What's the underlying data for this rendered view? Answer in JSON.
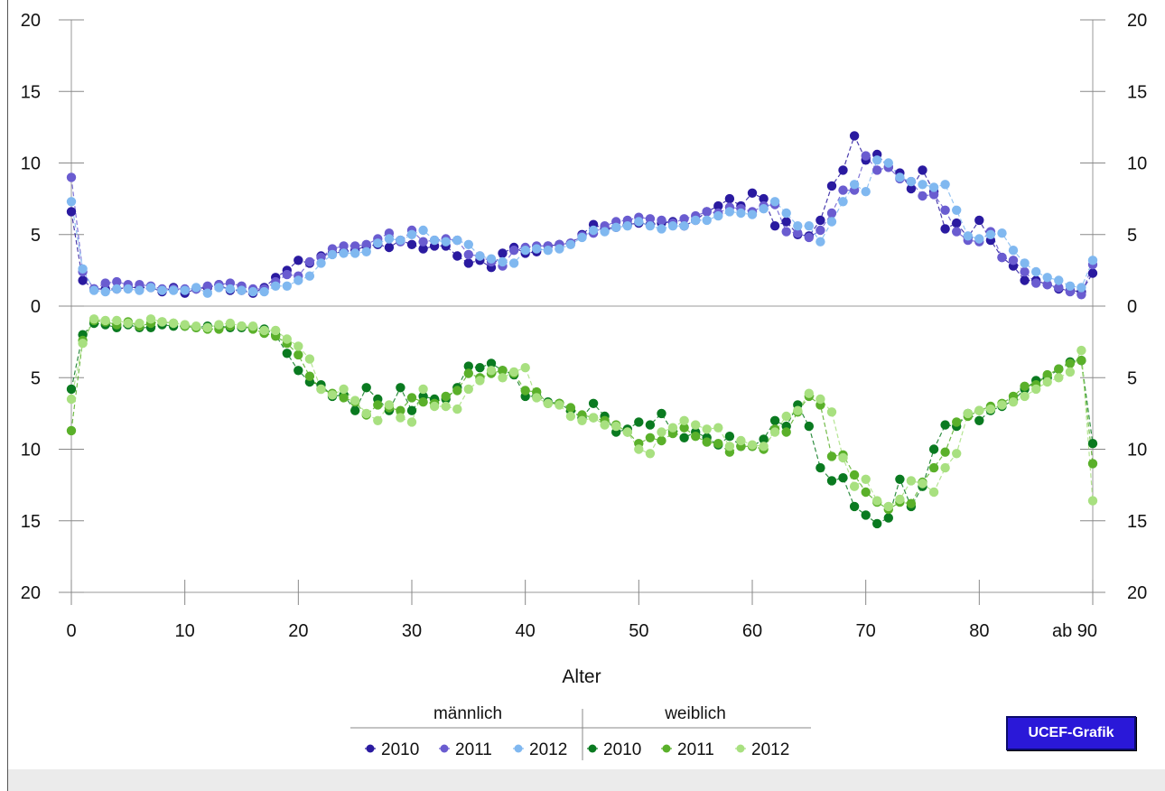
{
  "chart_data": {
    "type": "line",
    "xlabel": "Alter",
    "x_tick_labels": [
      "0",
      "10",
      "20",
      "30",
      "40",
      "50",
      "60",
      "70",
      "80",
      "ab 90"
    ],
    "x_ticks": [
      0,
      10,
      20,
      30,
      40,
      50,
      60,
      70,
      80,
      90
    ],
    "xlim": [
      0,
      90
    ],
    "y_tick_labels": [
      "20",
      "15",
      "10",
      "5",
      "0",
      "5",
      "10",
      "15",
      "20"
    ],
    "y_ticks": [
      20,
      15,
      10,
      5,
      0,
      -5,
      -10,
      -15,
      -20
    ],
    "ylim": [
      -20,
      20
    ],
    "grid": false,
    "legend_position": "bottom",
    "legend_groups": [
      "männlich",
      "weiblich"
    ],
    "x": [
      0,
      1,
      2,
      3,
      4,
      5,
      6,
      7,
      8,
      9,
      10,
      11,
      12,
      13,
      14,
      15,
      16,
      17,
      18,
      19,
      20,
      21,
      22,
      23,
      24,
      25,
      26,
      27,
      28,
      29,
      30,
      31,
      32,
      33,
      34,
      35,
      36,
      37,
      38,
      39,
      40,
      41,
      42,
      43,
      44,
      45,
      46,
      47,
      48,
      49,
      50,
      51,
      52,
      53,
      54,
      55,
      56,
      57,
      58,
      59,
      60,
      61,
      62,
      63,
      64,
      65,
      66,
      67,
      68,
      69,
      70,
      71,
      72,
      73,
      74,
      75,
      76,
      77,
      78,
      79,
      80,
      81,
      82,
      83,
      84,
      85,
      86,
      87,
      88,
      89,
      90
    ],
    "series": [
      {
        "name": "2010",
        "group": "männlich",
        "color": "#2a1aa0",
        "values": [
          6.6,
          1.8,
          1.2,
          1.2,
          1.2,
          1.3,
          1.3,
          1.3,
          1.0,
          1.3,
          0.9,
          1.2,
          1.3,
          1.5,
          1.1,
          1.1,
          0.9,
          1.3,
          2.0,
          2.5,
          3.2,
          3.0,
          3.5,
          3.7,
          3.8,
          3.9,
          4.2,
          4.3,
          4.1,
          4.6,
          4.3,
          4.0,
          4.2,
          4.2,
          3.5,
          3.0,
          3.2,
          2.7,
          3.7,
          4.1,
          3.7,
          3.8,
          4.2,
          4.3,
          4.4,
          5.0,
          5.7,
          5.4,
          5.5,
          5.7,
          5.8,
          5.7,
          5.8,
          5.9,
          5.6,
          6.0,
          6.6,
          7.0,
          7.5,
          7.0,
          7.9,
          7.5,
          5.6,
          5.9,
          5.0,
          4.9,
          6.0,
          8.4,
          9.5,
          11.9,
          10.2,
          10.6,
          9.7,
          9.3,
          8.2,
          9.5,
          8.0,
          5.4,
          5.8,
          4.8,
          6.0,
          4.6,
          3.4,
          2.8,
          1.8,
          1.8,
          1.5,
          1.2,
          1.1,
          1.0,
          2.3
        ]
      },
      {
        "name": "2011",
        "group": "männlich",
        "color": "#6a5cd0",
        "values": [
          9.0,
          2.4,
          1.2,
          1.6,
          1.7,
          1.5,
          1.5,
          1.4,
          1.2,
          1.2,
          1.2,
          1.2,
          1.4,
          1.5,
          1.6,
          1.4,
          1.2,
          1.2,
          1.7,
          2.2,
          2.1,
          3.1,
          3.4,
          4.0,
          4.2,
          4.2,
          4.3,
          4.7,
          5.1,
          4.5,
          5.3,
          4.5,
          4.6,
          4.7,
          4.6,
          3.6,
          3.5,
          3.1,
          2.8,
          3.9,
          4.1,
          4.2,
          4.2,
          4.3,
          4.4,
          4.9,
          5.1,
          5.6,
          5.9,
          6.0,
          6.2,
          6.1,
          6.0,
          5.8,
          6.1,
          6.3,
          6.6,
          6.5,
          6.9,
          6.8,
          6.6,
          7.0,
          7.1,
          5.2,
          5.1,
          4.8,
          5.3,
          6.5,
          8.1,
          8.1,
          10.5,
          9.5,
          9.7,
          8.9,
          8.7,
          7.7,
          7.8,
          6.7,
          5.2,
          4.6,
          4.5,
          5.2,
          3.4,
          3.2,
          2.4,
          1.6,
          1.5,
          1.3,
          1.0,
          0.8,
          2.9
        ]
      },
      {
        "name": "2012",
        "group": "männlich",
        "color": "#80b8f0",
        "values": [
          7.3,
          2.6,
          1.1,
          1.0,
          1.2,
          1.2,
          1.1,
          1.3,
          1.1,
          1.1,
          1.1,
          1.3,
          0.9,
          1.3,
          1.2,
          1.1,
          1.0,
          1.0,
          1.4,
          1.4,
          1.8,
          2.1,
          3.0,
          3.6,
          3.7,
          3.7,
          3.8,
          4.4,
          4.7,
          4.6,
          5.0,
          5.3,
          4.6,
          4.5,
          4.6,
          4.3,
          3.5,
          3.3,
          3.1,
          3.0,
          3.9,
          4.0,
          3.9,
          4.0,
          4.3,
          4.8,
          5.3,
          5.2,
          5.5,
          5.6,
          5.9,
          5.6,
          5.4,
          5.6,
          5.6,
          6.0,
          6.0,
          6.3,
          6.6,
          6.5,
          6.4,
          6.8,
          7.3,
          6.5,
          5.6,
          5.6,
          4.5,
          5.9,
          7.3,
          8.5,
          8.0,
          10.2,
          10.0,
          9.0,
          8.7,
          8.5,
          8.3,
          8.5,
          6.7,
          4.9,
          4.7,
          5.0,
          5.1,
          3.9,
          3.0,
          2.4,
          2.0,
          1.8,
          1.4,
          1.3,
          3.2
        ]
      },
      {
        "name": "2010",
        "group": "weiblich",
        "color": "#0a7a20",
        "values": [
          -5.8,
          -2.0,
          -1.2,
          -1.3,
          -1.5,
          -1.3,
          -1.5,
          -1.5,
          -1.3,
          -1.4,
          -1.4,
          -1.5,
          -1.4,
          -1.4,
          -1.5,
          -1.5,
          -1.5,
          -1.6,
          -2.0,
          -3.3,
          -4.5,
          -5.3,
          -5.5,
          -6.3,
          -6.2,
          -7.3,
          -5.7,
          -6.5,
          -7.3,
          -5.7,
          -7.3,
          -6.3,
          -6.5,
          -6.5,
          -5.7,
          -4.2,
          -4.3,
          -4.0,
          -4.5,
          -4.8,
          -6.3,
          -6.3,
          -6.7,
          -6.8,
          -7.3,
          -7.8,
          -6.8,
          -7.7,
          -8.8,
          -8.6,
          -8.1,
          -8.3,
          -7.5,
          -8.8,
          -9.2,
          -8.8,
          -9.2,
          -9.7,
          -9.1,
          -9.8,
          -9.8,
          -9.3,
          -8.0,
          -8.4,
          -6.9,
          -8.4,
          -11.3,
          -12.2,
          -12.0,
          -14.0,
          -14.6,
          -15.2,
          -14.8,
          -12.1,
          -14.0,
          -12.6,
          -10.0,
          -8.3,
          -8.4,
          -7.5,
          -8.0,
          -7.3,
          -7.0,
          -6.6,
          -5.8,
          -5.2,
          -5.0,
          -4.4,
          -3.9,
          -3.8,
          -9.6
        ]
      },
      {
        "name": "2011",
        "group": "weiblich",
        "color": "#5ab02a",
        "values": [
          -8.7,
          -2.4,
          -1.0,
          -1.1,
          -1.3,
          -1.1,
          -1.4,
          -1.2,
          -1.1,
          -1.2,
          -1.4,
          -1.5,
          -1.6,
          -1.6,
          -1.4,
          -1.4,
          -1.6,
          -1.9,
          -2.1,
          -2.6,
          -3.4,
          -4.9,
          -5.8,
          -6.1,
          -6.4,
          -6.7,
          -7.6,
          -6.9,
          -7.1,
          -7.3,
          -6.4,
          -6.7,
          -6.8,
          -6.3,
          -5.9,
          -4.7,
          -5.0,
          -4.7,
          -4.5,
          -4.7,
          -5.9,
          -6.0,
          -6.8,
          -6.8,
          -7.1,
          -7.6,
          -7.8,
          -8.0,
          -8.3,
          -8.8,
          -9.6,
          -9.2,
          -9.4,
          -8.9,
          -8.5,
          -9.1,
          -9.5,
          -9.6,
          -10.2,
          -9.8,
          -9.8,
          -10.0,
          -8.6,
          -8.8,
          -7.4,
          -6.3,
          -6.9,
          -10.5,
          -10.4,
          -11.8,
          -13.0,
          -13.7,
          -14.2,
          -13.7,
          -13.8,
          -12.3,
          -11.3,
          -10.2,
          -8.1,
          -7.7,
          -7.3,
          -7.0,
          -6.8,
          -6.3,
          -5.6,
          -5.5,
          -4.8,
          -4.4,
          -4.0,
          -3.8,
          -11.0
        ]
      },
      {
        "name": "2012",
        "group": "weiblich",
        "color": "#a8e080",
        "values": [
          -6.5,
          -2.6,
          -0.9,
          -1.0,
          -1.0,
          -1.2,
          -1.2,
          -0.9,
          -1.1,
          -1.2,
          -1.3,
          -1.4,
          -1.5,
          -1.3,
          -1.2,
          -1.4,
          -1.4,
          -1.7,
          -1.7,
          -2.3,
          -2.8,
          -3.7,
          -5.8,
          -6.2,
          -5.8,
          -6.6,
          -7.5,
          -8.0,
          -6.9,
          -7.8,
          -8.1,
          -5.8,
          -7.0,
          -7.0,
          -7.2,
          -5.8,
          -5.2,
          -4.5,
          -5.0,
          -4.6,
          -4.3,
          -6.4,
          -6.8,
          -6.9,
          -7.7,
          -8.0,
          -7.8,
          -8.3,
          -8.4,
          -8.8,
          -10.0,
          -10.3,
          -8.8,
          -8.5,
          -8.0,
          -8.3,
          -8.6,
          -8.5,
          -9.8,
          -9.4,
          -9.7,
          -9.8,
          -8.8,
          -7.7,
          -7.3,
          -6.1,
          -6.5,
          -7.4,
          -10.6,
          -12.6,
          -12.1,
          -13.6,
          -14.0,
          -13.5,
          -12.2,
          -12.4,
          -13.0,
          -11.3,
          -10.3,
          -7.5,
          -7.3,
          -7.2,
          -6.9,
          -6.7,
          -6.3,
          -5.8,
          -5.3,
          -5.0,
          -4.6,
          -3.1,
          -13.6
        ]
      }
    ]
  },
  "badge": {
    "label": "UCEF-Grafik"
  },
  "colors": {
    "male_2010": "#2a1aa0",
    "male_2011": "#6a5cd0",
    "male_2012": "#80b8f0",
    "female_2010": "#0a7a20",
    "female_2011": "#5ab02a",
    "female_2012": "#a8e080",
    "badge_bg": "#2a18d8"
  }
}
